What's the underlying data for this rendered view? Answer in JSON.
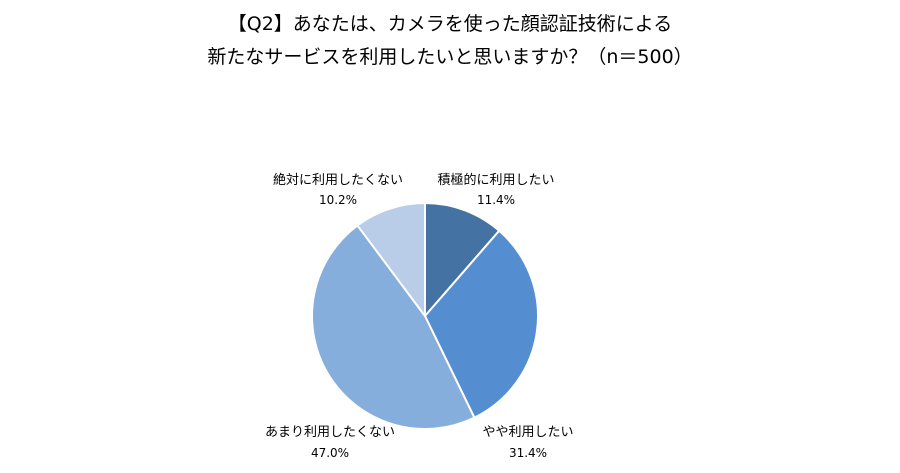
{
  "chart_data": {
    "type": "pie",
    "title": [
      "【Q2】あなたは、カメラを使った顔認証技術による",
      "新たなサービスを利用したいと思いますか？（n＝500）"
    ],
    "categories": [
      "積極的に利用したい",
      "やや利用したい",
      "あまり利用したくない",
      "絶対に利用したくない"
    ],
    "values": [
      11.4,
      31.4,
      47.0,
      10.2
    ],
    "value_labels": [
      "11.4%",
      "31.4%",
      "47.0%",
      "10.2%"
    ],
    "colors": [
      "#4472a2",
      "#558ed0",
      "#86aedd",
      "#b9cde8"
    ],
    "start_angle": "12 o'clock",
    "direction": "clockwise",
    "legend": "none"
  }
}
